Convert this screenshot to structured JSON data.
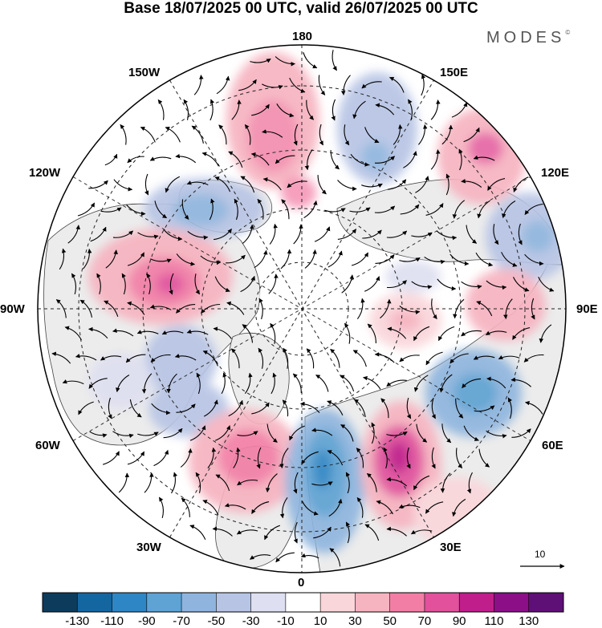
{
  "title": "Base 18/07/2025 00 UTC, valid 26/07/2025 00 UTC",
  "brand": "MODES",
  "brand_mark": "©",
  "longitude_labels": {
    "lon_180": "180",
    "lon_150e": "150E",
    "lon_120e": "120E",
    "lon_90e": "90E",
    "lon_60e": "60E",
    "lon_30e": "30E",
    "lon_0": "0",
    "lon_30w": "30W",
    "lon_60w": "60W",
    "lon_90w": "90W",
    "lon_120w": "120W",
    "lon_150w": "150W"
  },
  "reference_vector": {
    "label": "10"
  },
  "colorbar": {
    "ticks": [
      "-130",
      "-110",
      "-90",
      "-70",
      "-50",
      "-30",
      "-10",
      "10",
      "30",
      "50",
      "70",
      "90",
      "110",
      "130"
    ],
    "colors": [
      "#0d3b5c",
      "#1466a0",
      "#2f86c4",
      "#5ea3d3",
      "#8fb5de",
      "#b7c4e4",
      "#dedff0",
      "#ffffff",
      "#f9d6da",
      "#f6b3c0",
      "#f27ea6",
      "#e1519c",
      "#c01e8a",
      "#8c0f87",
      "#5e1076"
    ]
  },
  "map_style": {
    "grid": "dashed",
    "projection": "north polar stereographic",
    "land_color": "#ececec",
    "coast_color": "#444444"
  }
}
